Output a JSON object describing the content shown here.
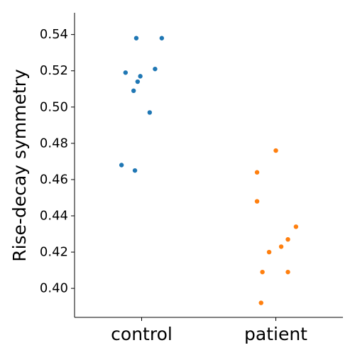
{
  "chart_data": {
    "type": "scatter",
    "subtype": "strip",
    "title": "",
    "xlabel": "",
    "ylabel": "Rise-decay symmetry",
    "categories": [
      "control",
      "patient"
    ],
    "ylim": [
      0.384,
      0.552
    ],
    "yticks": [
      0.4,
      0.42,
      0.44,
      0.46,
      0.48,
      0.5,
      0.52,
      0.54
    ],
    "ytick_labels": [
      "0.40",
      "0.42",
      "0.44",
      "0.46",
      "0.48",
      "0.50",
      "0.52",
      "0.54"
    ],
    "grid": false,
    "spines": [
      "left",
      "bottom"
    ],
    "series": [
      {
        "name": "control",
        "color": "#1f77b4",
        "points": [
          {
            "jitter": -0.04,
            "value": 0.538
          },
          {
            "jitter": 0.15,
            "value": 0.538
          },
          {
            "jitter": 0.1,
            "value": 0.521
          },
          {
            "jitter": -0.12,
            "value": 0.519
          },
          {
            "jitter": -0.01,
            "value": 0.517
          },
          {
            "jitter": -0.03,
            "value": 0.514
          },
          {
            "jitter": -0.06,
            "value": 0.509
          },
          {
            "jitter": 0.06,
            "value": 0.497
          },
          {
            "jitter": -0.15,
            "value": 0.468
          },
          {
            "jitter": -0.05,
            "value": 0.465
          }
        ]
      },
      {
        "name": "patient",
        "color": "#ff7f0e",
        "points": [
          {
            "jitter": 0.0,
            "value": 0.476
          },
          {
            "jitter": -0.14,
            "value": 0.464
          },
          {
            "jitter": -0.14,
            "value": 0.448
          },
          {
            "jitter": 0.15,
            "value": 0.434
          },
          {
            "jitter": 0.09,
            "value": 0.427
          },
          {
            "jitter": 0.04,
            "value": 0.423
          },
          {
            "jitter": -0.05,
            "value": 0.42
          },
          {
            "jitter": -0.1,
            "value": 0.409
          },
          {
            "jitter": 0.09,
            "value": 0.409
          },
          {
            "jitter": -0.11,
            "value": 0.392
          }
        ]
      }
    ]
  }
}
